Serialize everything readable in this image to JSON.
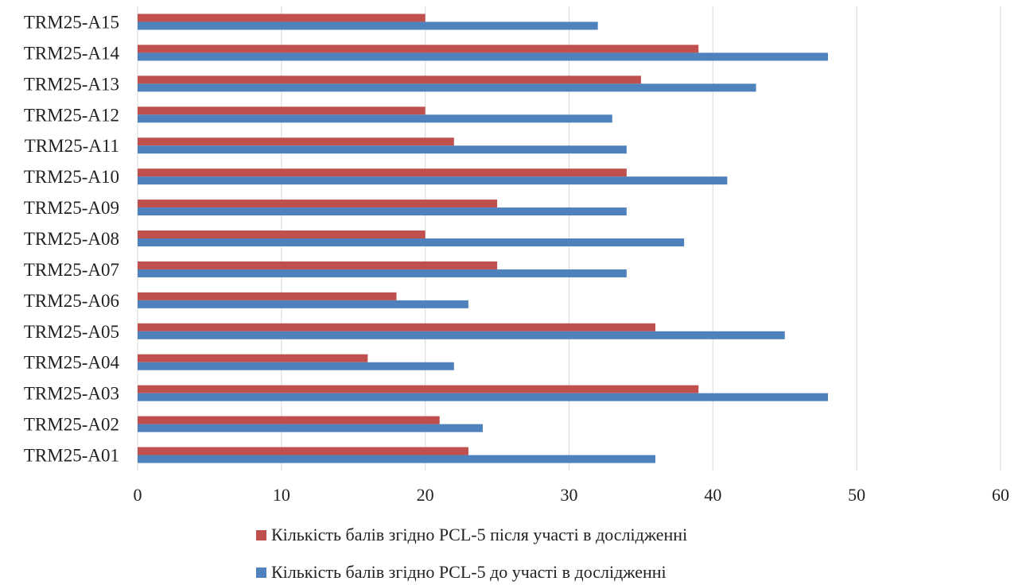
{
  "chart_data": {
    "type": "bar",
    "orientation": "horizontal",
    "categories": [
      "TRM25-A01",
      "TRM25-A02",
      "TRM25-A03",
      "TRM25-A04",
      "TRM25-A05",
      "TRM25-A06",
      "TRM25-A07",
      "TRM25-A08",
      "TRM25-A09",
      "TRM25-A10",
      "TRM25-A11",
      "TRM25-A12",
      "TRM25-A13",
      "TRM25-A14",
      "TRM25-A15"
    ],
    "series": [
      {
        "name": "Кількість балів згідно PCL-5 після  участі в дослідженні",
        "color": "#c0504d",
        "values": [
          23,
          21,
          39,
          16,
          36,
          18,
          25,
          20,
          25,
          34,
          22,
          20,
          35,
          39,
          20
        ]
      },
      {
        "name": "Кількість балів згідно PCL-5 до участі в дослідженні",
        "color": "#4f81bd",
        "values": [
          36,
          24,
          48,
          22,
          45,
          23,
          34,
          38,
          34,
          41,
          34,
          33,
          43,
          48,
          32
        ]
      }
    ],
    "xlim": [
      0,
      60
    ],
    "xticks": [
      "0",
      "10",
      "20",
      "30",
      "40",
      "50",
      "60"
    ],
    "grid": true,
    "legend_position": "bottom"
  }
}
